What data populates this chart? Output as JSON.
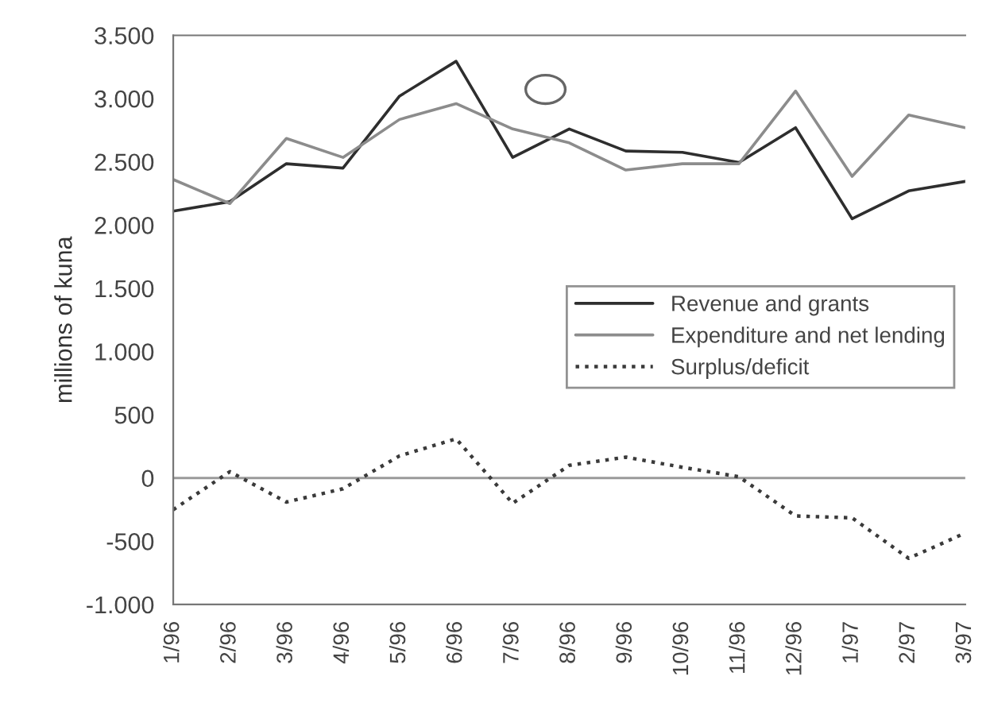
{
  "chart_data": {
    "type": "line",
    "ylabel": "millions of kuna",
    "categories": [
      "1/96",
      "2/96",
      "3/96",
      "4/96",
      "5/96",
      "6/96",
      "7/96",
      "8/96",
      "9/96",
      "10/96",
      "11/96",
      "12/96",
      "1/97",
      "2/97",
      "3/97"
    ],
    "series": [
      {
        "name": "Revenue and grants",
        "color": "#2e2e2e",
        "line_style": "solid",
        "values": [
          2110,
          2185,
          2485,
          2450,
          3020,
          3295,
          2535,
          2760,
          2585,
          2575,
          2495,
          2770,
          2050,
          2270,
          2345
        ]
      },
      {
        "name": "Expenditure and net lending",
        "color": "#8c8c8c",
        "line_style": "solid",
        "values": [
          2360,
          2170,
          2685,
          2535,
          2835,
          2960,
          2760,
          2650,
          2435,
          2485,
          2485,
          3060,
          2385,
          2870,
          2770
        ]
      },
      {
        "name": "Surplus/deficit",
        "color": "#3a3a3a",
        "line_style": "dotted",
        "values": [
          -250,
          50,
          -190,
          -85,
          175,
          310,
          -200,
          100,
          165,
          85,
          10,
          -300,
          -315,
          -635,
          -435
        ]
      }
    ],
    "ylim": [
      -1000,
      3500
    ],
    "yticks": [
      {
        "value": -1000,
        "label": "-1.000"
      },
      -500,
      0,
      500,
      {
        "value": 1000,
        "label": "1.000"
      },
      {
        "value": 1500,
        "label": "1.500"
      },
      {
        "value": 2000,
        "label": "2.000"
      },
      {
        "value": 2500,
        "label": "2.500"
      },
      {
        "value": 3000,
        "label": "3.000"
      },
      {
        "value": 3500,
        "label": "3.500"
      }
    ],
    "ref_lines": [
      {
        "axis": "y",
        "value": 0,
        "color": "#9a9a9a"
      }
    ],
    "legend": "right",
    "grid": false,
    "marker": "none"
  }
}
